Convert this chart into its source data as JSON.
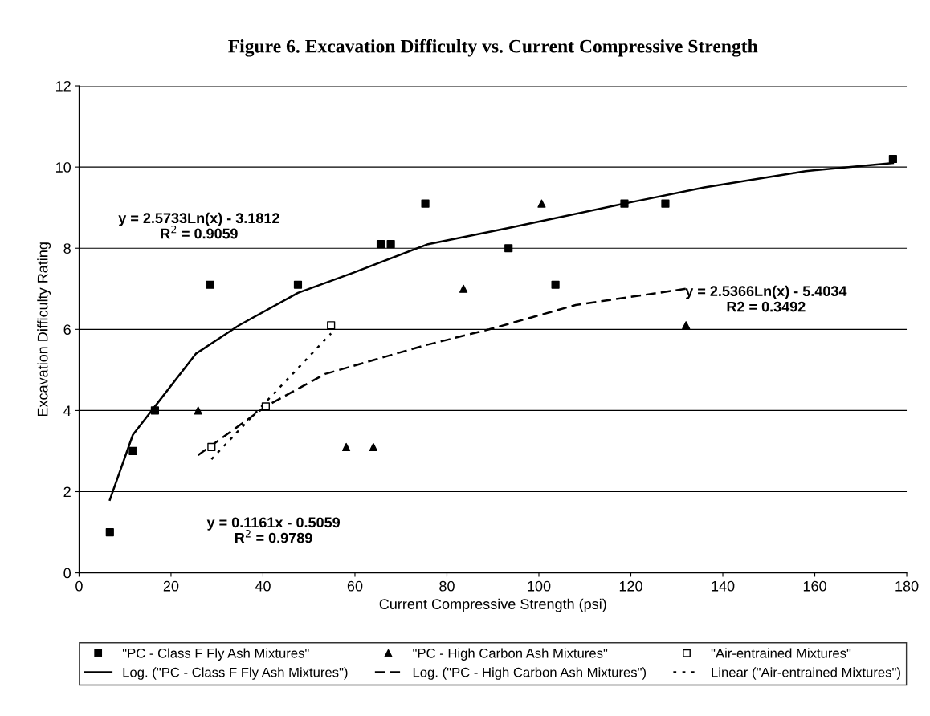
{
  "chart_data": {
    "type": "scatter",
    "title": "Figure 6. Excavation Difficulty vs. Current Compressive Strength",
    "xlabel": "Current Compressive Strength (psi)",
    "ylabel": "Excavation Difficulty Rating",
    "xlim": [
      0,
      180
    ],
    "xticks": [
      0,
      20,
      40,
      60,
      80,
      100,
      120,
      140,
      160,
      180
    ],
    "ylim": [
      0,
      12
    ],
    "yticks": [
      0,
      2,
      4,
      6,
      8,
      10,
      12
    ],
    "grid": "y",
    "legend": "bottom",
    "series": [
      {
        "name": "\"PC - Class F Fly Ash Mixtures\"",
        "marker": "square",
        "color": "#000000",
        "x": [
          6.7,
          11.7,
          16.5,
          28.5,
          47.6,
          65.6,
          67.8,
          75.3,
          93.4,
          103.6,
          118.6,
          127.5,
          177
        ],
        "values": [
          1.0,
          3.0,
          4.0,
          7.1,
          7.1,
          8.1,
          8.1,
          9.1,
          8.0,
          7.1,
          9.1,
          9.1,
          10.2
        ]
      },
      {
        "name": "\"PC - High Carbon Ash Mixtures\"",
        "marker": "triangle",
        "color": "#000000",
        "x": [
          25.9,
          58.1,
          64.0,
          83.6,
          100.6,
          132.0
        ],
        "values": [
          4.0,
          3.1,
          3.1,
          7.0,
          9.1,
          6.1
        ]
      },
      {
        "name": "\"Air-entrained Mixtures\"",
        "marker": "square",
        "color": "#ffffff",
        "x": [
          28.8,
          40.6,
          54.8
        ],
        "values": [
          3.1,
          4.1,
          6.1
        ]
      },
      {
        "name": "Log. (\"PC - Class F Fly Ash Mixtures\")",
        "type": "line",
        "line_style": "solid",
        "color": "#000000",
        "x": [
          6.7,
          11.7,
          16.5,
          25.4,
          34.8,
          47.6,
          59.7,
          75.9,
          93.4,
          118.6,
          136,
          158,
          177
        ],
        "values": [
          1.8,
          3.4,
          4.1,
          5.4,
          6.1,
          6.9,
          7.4,
          8.1,
          8.5,
          9.1,
          9.5,
          9.9,
          10.1
        ]
      },
      {
        "name": "Log. (\"PC - High Carbon Ash Mixtures\")",
        "type": "line",
        "line_style": "dashed",
        "color": "#000000",
        "x": [
          25.9,
          40.6,
          53.5,
          75.0,
          89.2,
          108,
          132
        ],
        "values": [
          2.9,
          4.1,
          4.9,
          5.6,
          6.0,
          6.6,
          7.0
        ]
      },
      {
        "name": "Linear (\"Air-entrained Mixtures\")",
        "type": "line",
        "line_style": "dotted",
        "color": "#000000",
        "x": [
          28.8,
          54.8
        ],
        "values": [
          2.8,
          5.9
        ]
      }
    ],
    "annotations": [
      "y = 2.5733Ln(x) - 3.1812\nR$^{2}$ = 0.9059",
      "y = 2.5366Ln(x) - 5.4034\nR2 = 0.3492",
      "y = 0.1161x - 0.5059\nR$^{2}$ = 0.9789"
    ]
  }
}
